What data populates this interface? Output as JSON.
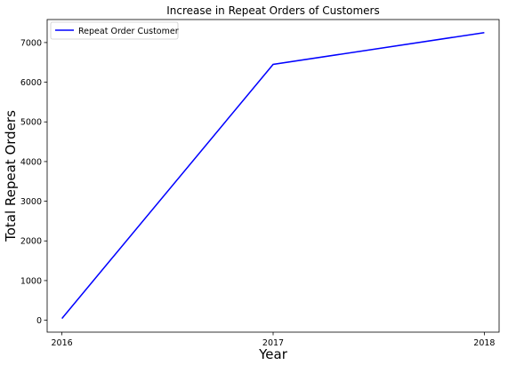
{
  "chart_data": {
    "type": "line",
    "title": "Increase in Repeat Orders of Customers",
    "xlabel": "Year",
    "ylabel": "Total Repeat Orders",
    "x": [
      "2016",
      "2017",
      "2018"
    ],
    "series": [
      {
        "name": "Repeat Order Customer",
        "values": [
          45,
          6450,
          7250
        ],
        "color": "#0000ff"
      }
    ],
    "xlim": [
      2015.93,
      2018.07
    ],
    "ylim": [
      -300,
      7580
    ],
    "yticks": [
      0,
      1000,
      2000,
      3000,
      4000,
      5000,
      6000,
      7000
    ],
    "grid": false,
    "legend": "top-left"
  }
}
